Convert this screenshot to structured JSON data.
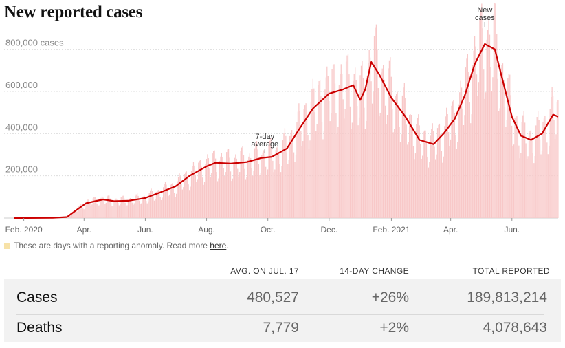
{
  "title": "New reported cases",
  "chart_data": {
    "type": "bar",
    "x_start": "2020-01-22",
    "x_end": "2021-07-17",
    "ylim": [
      0,
      900000
    ],
    "y_ticks": [
      {
        "value": 200000,
        "label": "200,000"
      },
      {
        "value": 400000,
        "label": "400,000"
      },
      {
        "value": 600000,
        "label": "600,000"
      },
      {
        "value": 800000,
        "label": "800,000 cases"
      }
    ],
    "x_ticks": [
      {
        "date": "2020-02-01",
        "label": "Feb. 2020"
      },
      {
        "date": "2020-04-01",
        "label": "Apr."
      },
      {
        "date": "2020-06-01",
        "label": "Jun."
      },
      {
        "date": "2020-08-01",
        "label": "Aug."
      },
      {
        "date": "2020-10-01",
        "label": "Oct."
      },
      {
        "date": "2020-12-01",
        "label": "Dec."
      },
      {
        "date": "2021-02-01",
        "label": "Feb. 2021"
      },
      {
        "date": "2021-04-01",
        "label": "Apr."
      },
      {
        "date": "2021-06-01",
        "label": "Jun."
      }
    ],
    "series": [
      {
        "type": "line",
        "color": "#cc0000",
        "points": [
          [
            "2020-01-22",
            0
          ],
          [
            "2020-03-01",
            1000
          ],
          [
            "2020-03-15",
            5000
          ],
          [
            "2020-03-25",
            40000
          ],
          [
            "2020-04-03",
            70000
          ],
          [
            "2020-04-12",
            80000
          ],
          [
            "2020-04-20",
            88000
          ],
          [
            "2020-05-01",
            80000
          ],
          [
            "2020-05-15",
            82000
          ],
          [
            "2020-06-01",
            95000
          ],
          [
            "2020-06-15",
            120000
          ],
          [
            "2020-07-01",
            150000
          ],
          [
            "2020-07-15",
            200000
          ],
          [
            "2020-08-01",
            245000
          ],
          [
            "2020-08-10",
            262000
          ],
          [
            "2020-08-25",
            258000
          ],
          [
            "2020-09-10",
            265000
          ],
          [
            "2020-09-25",
            285000
          ],
          [
            "2020-10-05",
            290000
          ],
          [
            "2020-10-20",
            330000
          ],
          [
            "2020-11-01",
            420000
          ],
          [
            "2020-11-15",
            520000
          ],
          [
            "2020-12-01",
            590000
          ],
          [
            "2020-12-15",
            610000
          ],
          [
            "2020-12-25",
            630000
          ],
          [
            "2021-01-01",
            560000
          ],
          [
            "2021-01-06",
            610000
          ],
          [
            "2021-01-12",
            740000
          ],
          [
            "2021-01-20",
            680000
          ],
          [
            "2021-02-01",
            570000
          ],
          [
            "2021-02-15",
            480000
          ],
          [
            "2021-03-01",
            370000
          ],
          [
            "2021-03-15",
            350000
          ],
          [
            "2021-03-25",
            400000
          ],
          [
            "2021-04-05",
            470000
          ],
          [
            "2021-04-15",
            580000
          ],
          [
            "2021-04-25",
            730000
          ],
          [
            "2021-05-05",
            825000
          ],
          [
            "2021-05-15",
            800000
          ],
          [
            "2021-05-25",
            610000
          ],
          [
            "2021-06-01",
            480000
          ],
          [
            "2021-06-10",
            390000
          ],
          [
            "2021-06-20",
            370000
          ],
          [
            "2021-07-01",
            400000
          ],
          [
            "2021-07-12",
            490000
          ],
          [
            "2021-07-17",
            480527
          ]
        ]
      },
      {
        "type": "bar",
        "color": "#f8c8c8"
      }
    ],
    "annotations": [
      {
        "text": [
          "7-day",
          "average"
        ],
        "date": "2020-09-28",
        "value": 300000
      },
      {
        "text": [
          "New",
          "cases"
        ],
        "date": "2021-05-05",
        "value": 900000
      }
    ]
  },
  "anomaly_note": {
    "text": "These are days with a reporting anomaly. Read more ",
    "link": "here",
    "tail": "."
  },
  "stats": {
    "columns": [
      "AVG. ON JUL. 17",
      "14-DAY CHANGE",
      "TOTAL REPORTED"
    ],
    "rows": [
      {
        "label": "Cases",
        "avg": "480,527",
        "change": "+26%",
        "total": "189,813,214"
      },
      {
        "label": "Deaths",
        "avg": "7,779",
        "change": "+2%",
        "total": "4,078,643"
      }
    ]
  }
}
